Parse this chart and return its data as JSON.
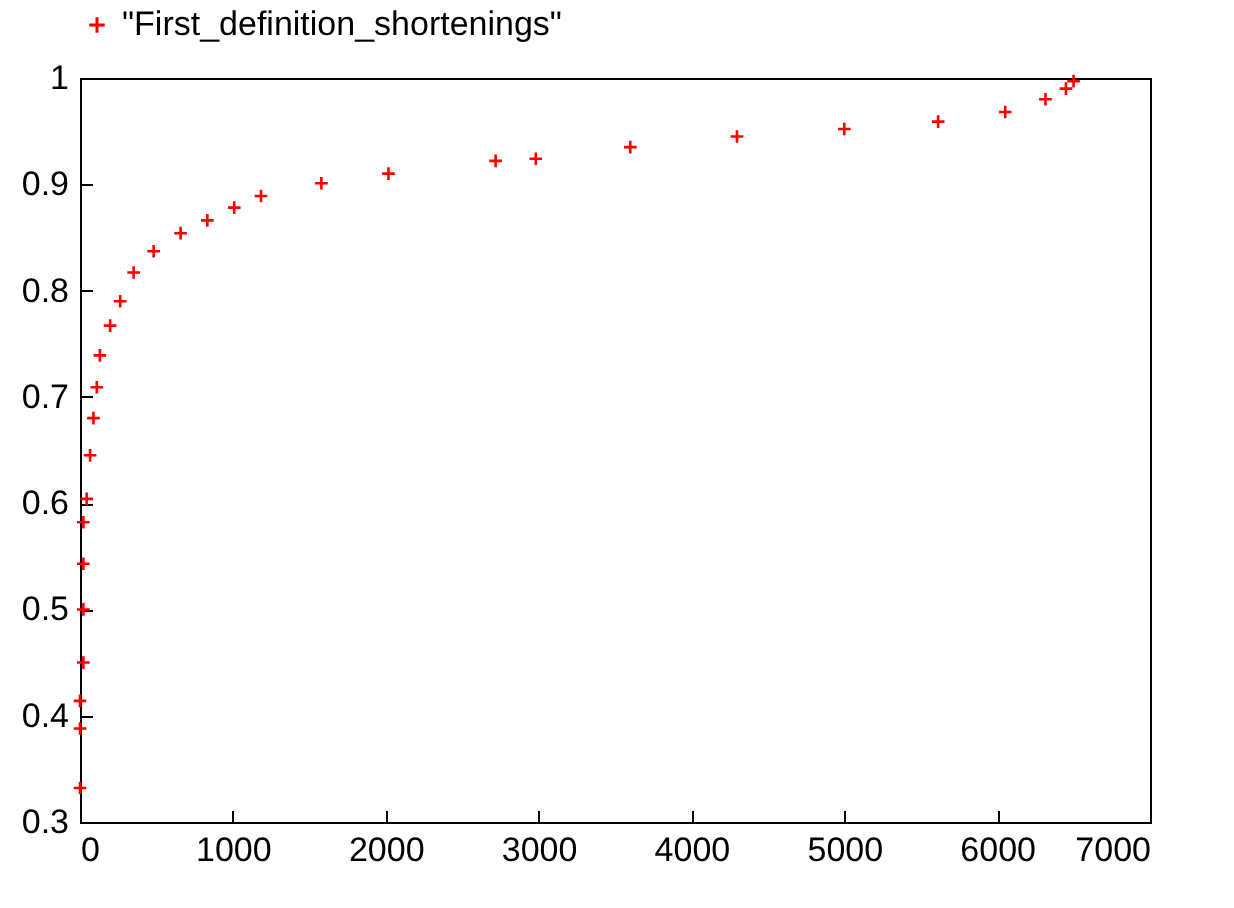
{
  "chart_data": {
    "type": "scatter",
    "marker": "cross",
    "legend": "top",
    "xlim": [
      0,
      7000
    ],
    "xticks": [
      0,
      1000,
      2000,
      3000,
      4000,
      5000,
      6000,
      7000
    ],
    "ylim": [
      0.3,
      1
    ],
    "yticks": [
      0.3,
      0.4,
      0.5,
      0.6,
      0.7,
      0.8,
      0.9,
      1
    ],
    "series": [
      {
        "name": "\"First_definition_shortenings\"",
        "color": "#ff0000",
        "x": [
          0,
          0,
          0,
          22,
          22,
          22,
          22,
          44,
          66,
          88,
          110,
          130,
          197,
          263,
          351,
          482,
          658,
          833,
          1009,
          1184,
          1579,
          2018,
          2719,
          2982,
          3600,
          4298,
          5000,
          5614,
          6053,
          6316,
          6450,
          6500
        ],
        "values": [
          0.332,
          0.388,
          0.414,
          0.45,
          0.5,
          0.543,
          0.582,
          0.604,
          0.645,
          0.68,
          0.709,
          0.739,
          0.767,
          0.79,
          0.817,
          0.837,
          0.854,
          0.866,
          0.878,
          0.889,
          0.901,
          0.91,
          0.922,
          0.924,
          0.935,
          0.945,
          0.952,
          0.959,
          0.968,
          0.98,
          0.99,
          0.997
        ]
      }
    ]
  }
}
